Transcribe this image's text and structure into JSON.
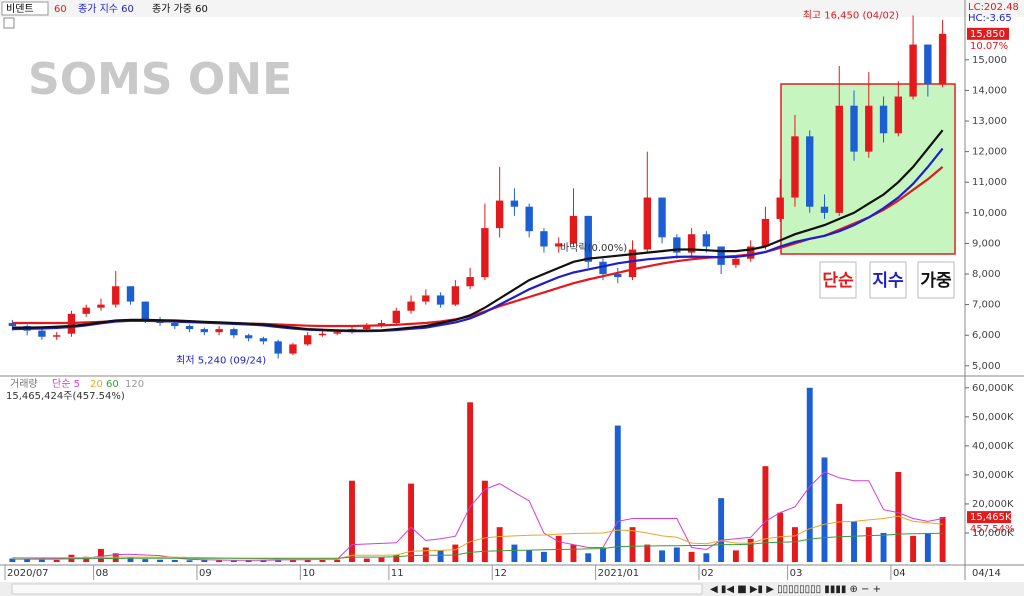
{
  "toolbar": {
    "stock": "비덴트"
  },
  "watermark": "SOMS ONE",
  "buttons": [
    "단순",
    "지수",
    "가중"
  ],
  "chart_data": [
    {
      "type": "candlestick",
      "categories": [
        "2020/07",
        null,
        null,
        null,
        null,
        null,
        "08",
        null,
        null,
        null,
        null,
        null,
        null,
        "09",
        null,
        null,
        null,
        null,
        null,
        null,
        "10",
        null,
        null,
        null,
        null,
        null,
        "11",
        null,
        null,
        null,
        null,
        null,
        null,
        "12",
        null,
        null,
        null,
        null,
        null,
        null,
        "2021/01",
        null,
        null,
        null,
        null,
        null,
        null,
        "02",
        null,
        null,
        null,
        null,
        null,
        "03",
        null,
        null,
        null,
        null,
        null,
        null,
        "04",
        null,
        null,
        null
      ],
      "open": [
        6400,
        6300,
        6150,
        5950,
        6050,
        6700,
        6900,
        7000,
        7600,
        7100,
        6500,
        6400,
        6300,
        6200,
        6100,
        6200,
        6000,
        5900,
        5800,
        5400,
        5700,
        6000,
        6050,
        6100,
        6200,
        6300,
        6400,
        6800,
        7100,
        7300,
        7000,
        7600,
        7900,
        9500,
        10400,
        10200,
        9400,
        8900,
        9000,
        9900,
        8400,
        8000,
        7900,
        8800,
        10500,
        9200,
        8700,
        9300,
        8900,
        8300,
        8500,
        8900,
        9800,
        10500,
        12500,
        10200,
        10000,
        13500,
        12000,
        13500,
        12600,
        13800,
        15500,
        14200
      ],
      "high": [
        6500,
        6350,
        6200,
        6100,
        6800,
        7000,
        7200,
        8100,
        7600,
        7100,
        6600,
        6450,
        6350,
        6250,
        6300,
        6250,
        6050,
        5950,
        5850,
        5750,
        6100,
        6150,
        6200,
        6300,
        6400,
        6500,
        6900,
        7300,
        7500,
        7400,
        7800,
        8200,
        10300,
        11500,
        10800,
        10300,
        9500,
        9200,
        10800,
        9900,
        8500,
        8200,
        9100,
        12000,
        10500,
        9300,
        9500,
        9400,
        8900,
        8600,
        9100,
        10200,
        11100,
        13200,
        12700,
        10600,
        14800,
        14000,
        14600,
        13800,
        14300,
        16450,
        15500,
        16300
      ],
      "low": [
        6150,
        6000,
        5850,
        5850,
        5950,
        6600,
        6800,
        6900,
        7000,
        6400,
        6300,
        6200,
        6100,
        6000,
        6000,
        5900,
        5800,
        5700,
        5240,
        5350,
        5650,
        5950,
        6000,
        6050,
        6150,
        6250,
        6350,
        6700,
        7000,
        6900,
        6950,
        7500,
        7800,
        9200,
        9900,
        9200,
        8700,
        8700,
        8900,
        8200,
        7800,
        7700,
        7800,
        8700,
        9000,
        8500,
        8600,
        8700,
        8000,
        8200,
        8400,
        8800,
        9700,
        10200,
        10000,
        9800,
        9900,
        11700,
        11800,
        12300,
        12500,
        13700,
        13800,
        14100
      ],
      "close": [
        6300,
        6150,
        5950,
        6000,
        6700,
        6900,
        7000,
        7600,
        7100,
        6500,
        6400,
        6300,
        6200,
        6100,
        6200,
        6000,
        5900,
        5800,
        5400,
        5700,
        6000,
        6050,
        6100,
        6200,
        6300,
        6400,
        6800,
        7100,
        7300,
        7000,
        7600,
        7900,
        9500,
        10400,
        10200,
        9400,
        8900,
        9000,
        9900,
        8400,
        8000,
        7900,
        8800,
        10500,
        9200,
        8700,
        9300,
        8900,
        8300,
        8500,
        8900,
        9800,
        10500,
        12500,
        10200,
        10000,
        13500,
        12000,
        13500,
        12600,
        13800,
        15500,
        14200,
        15850
      ],
      "up_color": "#e3191b",
      "down_color": "#1c5fd2",
      "series": [
        {
          "name": "60",
          "color": "#e3191b",
          "values": [
            6400,
            6400,
            6400,
            6400,
            6400,
            6420,
            6440,
            6460,
            6470,
            6470,
            6460,
            6450,
            6440,
            6420,
            6400,
            6390,
            6380,
            6370,
            6350,
            6330,
            6310,
            6300,
            6300,
            6300,
            6310,
            6320,
            6340,
            6370,
            6400,
            6450,
            6520,
            6620,
            6780,
            6950,
            7100,
            7250,
            7400,
            7550,
            7700,
            7820,
            7930,
            8040,
            8150,
            8250,
            8340,
            8420,
            8480,
            8530,
            8560,
            8590,
            8640,
            8720,
            8850,
            9000,
            9150,
            9250,
            9450,
            9650,
            9850,
            10100,
            10400,
            10750,
            11100,
            11500
          ]
        },
        {
          "name": "종가 지수 60",
          "color": "#1f1fc8",
          "values": [
            6200,
            6210,
            6220,
            6240,
            6270,
            6320,
            6390,
            6450,
            6470,
            6470,
            6460,
            6450,
            6430,
            6410,
            6390,
            6370,
            6350,
            6320,
            6270,
            6220,
            6180,
            6160,
            6140,
            6130,
            6130,
            6140,
            6170,
            6210,
            6250,
            6330,
            6420,
            6550,
            6750,
            7000,
            7250,
            7500,
            7700,
            7900,
            8050,
            8150,
            8250,
            8350,
            8420,
            8480,
            8520,
            8560,
            8570,
            8560,
            8550,
            8560,
            8620,
            8720,
            8900,
            9050,
            9150,
            9250,
            9400,
            9600,
            9850,
            10150,
            10500,
            10950,
            11500,
            12100
          ]
        },
        {
          "name": "종가 가중 60",
          "color": "#111111",
          "values": [
            6250,
            6250,
            6260,
            6280,
            6300,
            6350,
            6420,
            6480,
            6500,
            6500,
            6490,
            6480,
            6460,
            6440,
            6420,
            6400,
            6380,
            6350,
            6300,
            6250,
            6200,
            6180,
            6160,
            6150,
            6150,
            6160,
            6200,
            6250,
            6300,
            6400,
            6500,
            6650,
            6900,
            7200,
            7500,
            7800,
            8000,
            8200,
            8400,
            8500,
            8550,
            8600,
            8650,
            8700,
            8750,
            8800,
            8800,
            8780,
            8750,
            8750,
            8800,
            8900,
            9100,
            9300,
            9450,
            9600,
            9800,
            10000,
            10300,
            10600,
            11000,
            11500,
            12100,
            12700
          ]
        }
      ],
      "ylim": [
        4700,
        16400
      ],
      "yticks": [
        {
          "value": 5000,
          "label": "5,000"
        },
        {
          "value": 6000,
          "label": "6,000"
        },
        {
          "value": 7000,
          "label": "7,000"
        },
        {
          "value": 8000,
          "label": "8,000"
        },
        {
          "value": 9000,
          "label": "9,000"
        },
        {
          "value": 10000,
          "label": "10,000"
        },
        {
          "value": 11000,
          "label": "11,000"
        },
        {
          "value": 12000,
          "label": "12,000"
        },
        {
          "value": 13000,
          "label": "13,000"
        },
        {
          "value": 14000,
          "label": "14,000"
        },
        {
          "value": 15000,
          "label": "15,000"
        }
      ],
      "high_note": "최고 16,450 (04/02)",
      "low_note": "최저 5,240 (09/24)",
      "floor_note": "바닥락(0.00%)",
      "lc": "LC:202.48",
      "hc": "HC:-3.65",
      "last_price": {
        "value": 15850,
        "label": "15,850"
      },
      "change": "10.07%",
      "last_date": "04/14"
    },
    {
      "type": "bar",
      "title": "거래량",
      "values": [
        1200,
        900,
        800,
        700,
        2500,
        1800,
        4500,
        3000,
        1500,
        1000,
        800,
        700,
        600,
        700,
        600,
        500,
        600,
        700,
        1200,
        800,
        900,
        700,
        800,
        28000,
        1200,
        1500,
        2500,
        27000,
        5000,
        4000,
        6000,
        55000,
        28000,
        12000,
        6000,
        4000,
        3500,
        9000,
        6000,
        3000,
        5000,
        47000,
        12000,
        6000,
        4000,
        5000,
        3500,
        3000,
        22000,
        4000,
        8000,
        33000,
        17000,
        12000,
        60000,
        36000,
        20000,
        14000,
        12000,
        10000,
        31000,
        9000,
        10000,
        15465
      ],
      "series": [
        {
          "name": "단순 5",
          "color": "#d23fd2",
          "values": [
            1500,
            1400,
            1300,
            1200,
            1300,
            1300,
            2000,
            2500,
            2700,
            2400,
            2200,
            1400,
            900,
            800,
            700,
            600,
            600,
            600,
            700,
            800,
            800,
            900,
            900,
            6000,
            6200,
            6400,
            6600,
            12000,
            7400,
            8000,
            8900,
            19000,
            25000,
            27000,
            24000,
            21000,
            10000,
            7000,
            6000,
            5000,
            5000,
            14000,
            15000,
            15000,
            15000,
            15000,
            5000,
            4300,
            7500,
            8000,
            8500,
            14000,
            17000,
            19000,
            26000,
            31000,
            29000,
            28000,
            28000,
            18000,
            17000,
            15000,
            14000,
            15000
          ]
        },
        {
          "name": "20",
          "color": "#e8a72a",
          "values": [
            1500,
            1500,
            1500,
            1500,
            1500,
            1500,
            1600,
            1700,
            1700,
            1700,
            1700,
            1700,
            1600,
            1500,
            1400,
            1300,
            1200,
            1100,
            1000,
            1000,
            1000,
            1000,
            1000,
            2300,
            2300,
            2300,
            2400,
            3700,
            3900,
            4000,
            4200,
            7000,
            8300,
            8800,
            9000,
            9200,
            9300,
            9600,
            9800,
            9900,
            10000,
            11000,
            10800,
            10000,
            9000,
            8500,
            6500,
            6300,
            7300,
            6500,
            6500,
            8000,
            8700,
            9000,
            11500,
            13000,
            13800,
            14000,
            14500,
            15000,
            15800,
            14000,
            13500,
            13000
          ]
        },
        {
          "name": "60",
          "color": "#3c9a3c",
          "values": [
            1000,
            1000,
            1000,
            1000,
            1100,
            1100,
            1200,
            1200,
            1300,
            1300,
            1300,
            1300,
            1300,
            1300,
            1300,
            1300,
            1300,
            1300,
            1300,
            1300,
            1300,
            1300,
            1300,
            1700,
            1700,
            1700,
            1800,
            2200,
            2300,
            2300,
            2400,
            3300,
            3700,
            3900,
            4000,
            4100,
            4200,
            4300,
            4400,
            4500,
            4600,
            5300,
            5400,
            5500,
            5600,
            5600,
            5700,
            5700,
            6000,
            6000,
            6100,
            6600,
            6800,
            7000,
            7900,
            8400,
            8700,
            8900,
            9100,
            9200,
            9600,
            9700,
            9800,
            9900
          ]
        }
      ],
      "ma120_label": "120",
      "ma120_color": "#999999",
      "info": "15,465,424주(457.54%)",
      "last_volume": {
        "value": 15465,
        "label": "15,465K"
      },
      "ratio": "457.54%",
      "ylim": [
        0,
        62000
      ],
      "yticks": [
        {
          "value": 10000,
          "label": "10,000K"
        },
        {
          "value": 20000,
          "label": "20,000K"
        },
        {
          "value": 30000,
          "label": "30,000K"
        },
        {
          "value": 40000,
          "label": "40,000K"
        },
        {
          "value": 50000,
          "label": "50,000K"
        },
        {
          "value": 60000,
          "label": "60,000K"
        }
      ]
    }
  ]
}
